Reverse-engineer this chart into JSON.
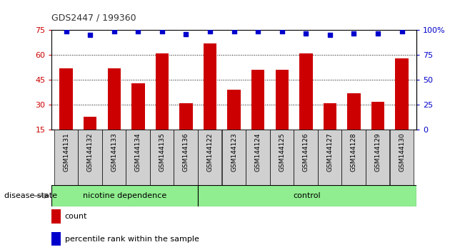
{
  "title": "GDS2447 / 199360",
  "categories": [
    "GSM144131",
    "GSM144132",
    "GSM144133",
    "GSM144134",
    "GSM144135",
    "GSM144136",
    "GSM144122",
    "GSM144123",
    "GSM144124",
    "GSM144125",
    "GSM144126",
    "GSM144127",
    "GSM144128",
    "GSM144129",
    "GSM144130"
  ],
  "bar_values": [
    52,
    23,
    52,
    43,
    61,
    31,
    67,
    39,
    51,
    51,
    61,
    31,
    37,
    32,
    58
  ],
  "percentile_values": [
    99,
    95,
    99,
    99,
    99,
    96,
    99,
    99,
    99,
    99,
    97,
    95,
    97,
    97,
    99
  ],
  "bar_color": "#cc0000",
  "dot_color": "#0000cc",
  "ylim_left": [
    15,
    75
  ],
  "ylim_right": [
    0,
    100
  ],
  "yticks_left": [
    15,
    30,
    45,
    60,
    75
  ],
  "yticks_right": [
    0,
    25,
    50,
    75,
    100
  ],
  "grid_values": [
    30,
    45,
    60
  ],
  "group1_label": "nicotine dependence",
  "group2_label": "control",
  "group1_count": 6,
  "group2_count": 9,
  "disease_label": "disease state",
  "legend_count_label": "count",
  "legend_percentile_label": "percentile rank within the sample",
  "group_color": "#90ee90",
  "title_color": "#333333",
  "left_axis_color": "#cc0000",
  "right_axis_color": "#0000cc",
  "tick_bg_color": "#d0d0d0",
  "bar_width": 0.55
}
